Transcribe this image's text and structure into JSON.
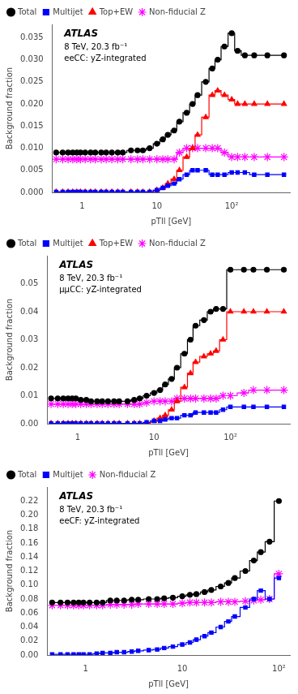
{
  "chart_data": [
    {
      "type": "line",
      "log": "x",
      "grid": false,
      "legend": "upper left",
      "x_label": "pTll [GeV]",
      "y_label": "Background fraction",
      "annotations": [
        "ATLAS",
        "8 TeV, 20.3 fb⁻¹",
        "eeCC: yZ-integrated"
      ],
      "xlim": [
        0.4,
        600
      ],
      "xticks": [
        1,
        10,
        {
          "value": 100,
          "label": "10²"
        }
      ],
      "ylim": [
        0,
        0.038
      ],
      "yticks": [
        {
          "value": 0,
          "label": "0.000"
        },
        0.005,
        {
          "value": 0.01,
          "label": "0.010"
        },
        0.015,
        {
          "value": 0.02,
          "label": "0.020"
        },
        0.025,
        {
          "value": 0.03,
          "label": "0.030"
        },
        0.035
      ],
      "x": [
        0.45,
        0.55,
        0.65,
        0.75,
        0.85,
        0.95,
        1.1,
        1.3,
        1.5,
        1.8,
        2.1,
        2.5,
        3.0,
        3.5,
        4.5,
        5.5,
        6.5,
        8.0,
        10,
        12,
        14,
        17,
        20,
        25,
        30,
        35,
        45,
        55,
        65,
        80,
        100,
        120,
        150,
        200,
        300,
        500
      ],
      "series": [
        {
          "name": "Total",
          "color": "black",
          "marker": "circle",
          "values": [
            0.009,
            0.009,
            0.009,
            0.009,
            0.009,
            0.009,
            0.009,
            0.009,
            0.009,
            0.009,
            0.009,
            0.009,
            0.009,
            0.009,
            0.0095,
            0.0095,
            0.0095,
            0.01,
            0.011,
            0.012,
            0.013,
            0.014,
            0.016,
            0.018,
            0.02,
            0.022,
            0.025,
            0.028,
            0.03,
            0.033,
            0.036,
            0.032,
            0.031,
            0.031,
            0.031,
            0.031
          ]
        },
        {
          "name": "Multijet",
          "color": "blue",
          "marker": "square",
          "values": [
            0.0001,
            0.0001,
            0.0001,
            0.0001,
            0.0001,
            0.0001,
            0.0001,
            0.0001,
            0.0001,
            0.0001,
            0.0001,
            0.0001,
            0.0001,
            0.0001,
            0.0001,
            0.0001,
            0.0001,
            0.0001,
            0.0005,
            0.001,
            0.0015,
            0.002,
            0.003,
            0.004,
            0.005,
            0.005,
            0.005,
            0.004,
            0.004,
            0.004,
            0.0045,
            0.0045,
            0.0045,
            0.004,
            0.004,
            0.004
          ]
        },
        {
          "name": "Top+EW",
          "color": "red",
          "marker": "triangle",
          "values": [
            0.0001,
            0.0001,
            0.0001,
            0.0001,
            0.0001,
            0.0001,
            0.0001,
            0.0001,
            0.0001,
            0.0001,
            0.0001,
            0.0001,
            0.0001,
            0.0001,
            0.0001,
            0.0001,
            0.0001,
            0.0001,
            0.0005,
            0.001,
            0.002,
            0.003,
            0.005,
            0.008,
            0.01,
            0.013,
            0.017,
            0.022,
            0.023,
            0.022,
            0.021,
            0.02,
            0.02,
            0.02,
            0.02,
            0.02
          ]
        },
        {
          "name": "Non-fiducial Z",
          "color": "magenta",
          "marker": "star",
          "values": [
            0.0075,
            0.0075,
            0.0075,
            0.0075,
            0.0075,
            0.0075,
            0.0075,
            0.0075,
            0.0075,
            0.0075,
            0.0075,
            0.0075,
            0.0075,
            0.0075,
            0.0075,
            0.0075,
            0.0075,
            0.0075,
            0.0075,
            0.0075,
            0.0075,
            0.0075,
            0.009,
            0.01,
            0.01,
            0.01,
            0.01,
            0.01,
            0.01,
            0.009,
            0.008,
            0.008,
            0.008,
            0.008,
            0.008,
            0.008
          ]
        }
      ]
    },
    {
      "type": "line",
      "log": "x",
      "grid": false,
      "legend": "upper left",
      "x_label": "pTll [GeV]",
      "y_label": "Background fraction",
      "annotations": [
        "ATLAS",
        "8 TeV, 20.3 fb⁻¹",
        "μμCC: yZ-integrated"
      ],
      "xlim": [
        0.4,
        600
      ],
      "xticks": [
        1,
        10,
        {
          "value": 100,
          "label": "10²"
        }
      ],
      "ylim": [
        0,
        0.06
      ],
      "yticks": [
        {
          "value": 0,
          "label": "0.00"
        },
        0.01,
        0.02,
        0.03,
        0.04,
        0.05
      ],
      "x": [
        0.45,
        0.55,
        0.65,
        0.75,
        0.85,
        0.95,
        1.1,
        1.3,
        1.5,
        1.8,
        2.1,
        2.5,
        3.0,
        3.5,
        4.5,
        5.5,
        6.5,
        8.0,
        10,
        12,
        14,
        17,
        20,
        25,
        30,
        35,
        45,
        55,
        65,
        80,
        100,
        150,
        200,
        300,
        500
      ],
      "series": [
        {
          "name": "Total",
          "color": "black",
          "marker": "circle",
          "values": [
            0.009,
            0.009,
            0.009,
            0.009,
            0.009,
            0.009,
            0.0085,
            0.0085,
            0.008,
            0.008,
            0.008,
            0.008,
            0.008,
            0.008,
            0.008,
            0.0085,
            0.009,
            0.01,
            0.011,
            0.012,
            0.014,
            0.016,
            0.02,
            0.025,
            0.03,
            0.035,
            0.037,
            0.04,
            0.041,
            0.041,
            0.055,
            0.055,
            0.055,
            0.055,
            0.055
          ]
        },
        {
          "name": "Multijet",
          "color": "blue",
          "marker": "square",
          "values": [
            0.0001,
            0.0001,
            0.0001,
            0.0001,
            0.0001,
            0.0001,
            0.0001,
            0.0001,
            0.0001,
            0.0001,
            0.0001,
            0.0001,
            0.0001,
            0.0001,
            0.0001,
            0.0001,
            0.0001,
            0.0005,
            0.001,
            0.001,
            0.0015,
            0.002,
            0.002,
            0.003,
            0.003,
            0.004,
            0.004,
            0.004,
            0.004,
            0.005,
            0.006,
            0.006,
            0.006,
            0.006,
            0.006
          ]
        },
        {
          "name": "Top+EW",
          "color": "red",
          "marker": "triangle",
          "values": [
            0.0001,
            0.0001,
            0.0001,
            0.0001,
            0.0001,
            0.0001,
            0.0001,
            0.0001,
            0.0001,
            0.0001,
            0.0001,
            0.0001,
            0.0001,
            0.0001,
            0.0001,
            0.0001,
            0.0001,
            0.0001,
            0.001,
            0.002,
            0.003,
            0.005,
            0.008,
            0.013,
            0.018,
            0.022,
            0.024,
            0.025,
            0.026,
            0.03,
            0.04,
            0.04,
            0.04,
            0.04,
            0.04
          ]
        },
        {
          "name": "Non-fiducial Z",
          "color": "magenta",
          "marker": "star",
          "values": [
            0.007,
            0.007,
            0.007,
            0.007,
            0.007,
            0.007,
            0.007,
            0.007,
            0.007,
            0.007,
            0.007,
            0.007,
            0.007,
            0.007,
            0.007,
            0.007,
            0.007,
            0.0075,
            0.008,
            0.008,
            0.008,
            0.008,
            0.009,
            0.009,
            0.009,
            0.009,
            0.009,
            0.009,
            0.009,
            0.01,
            0.01,
            0.011,
            0.012,
            0.012,
            0.012
          ]
        }
      ]
    },
    {
      "type": "line",
      "log": "x",
      "grid": false,
      "legend": "upper left",
      "x_label": "pTll [GeV]",
      "y_label": "Background fraction",
      "annotations": [
        "ATLAS",
        "8 TeV, 20.3 fb⁻¹",
        "eeCF: yZ-integrated"
      ],
      "xlim": [
        0.4,
        130
      ],
      "xticks": [
        1,
        10,
        {
          "value": 100,
          "label": "10²"
        }
      ],
      "ylim": [
        0,
        0.24
      ],
      "yticks": [
        {
          "value": 0,
          "label": "0.00"
        },
        0.02,
        0.04,
        0.06,
        0.08,
        {
          "value": 0.1,
          "label": "0.10"
        },
        0.12,
        0.14,
        0.16,
        0.18,
        {
          "value": 0.2,
          "label": "0.20"
        },
        0.22
      ],
      "x": [
        0.45,
        0.55,
        0.65,
        0.75,
        0.85,
        0.95,
        1.1,
        1.3,
        1.5,
        1.8,
        2.1,
        2.5,
        3.0,
        3.5,
        4.5,
        5.5,
        6.5,
        8.0,
        10,
        12,
        14,
        17,
        20,
        25,
        30,
        35,
        45,
        55,
        65,
        80,
        100
      ],
      "series": [
        {
          "name": "Total",
          "color": "black",
          "marker": "circle",
          "values": [
            0.075,
            0.075,
            0.075,
            0.075,
            0.075,
            0.075,
            0.075,
            0.075,
            0.075,
            0.078,
            0.078,
            0.078,
            0.079,
            0.079,
            0.08,
            0.08,
            0.081,
            0.082,
            0.084,
            0.086,
            0.087,
            0.09,
            0.093,
            0.098,
            0.103,
            0.11,
            0.12,
            0.135,
            0.147,
            0.162,
            0.22
          ]
        },
        {
          "name": "Multijet",
          "color": "blue",
          "marker": "square",
          "values": [
            0.001,
            0.001,
            0.001,
            0.001,
            0.001,
            0.001,
            0.001,
            0.002,
            0.003,
            0.003,
            0.004,
            0.004,
            0.005,
            0.006,
            0.007,
            0.008,
            0.01,
            0.012,
            0.015,
            0.018,
            0.022,
            0.027,
            0.032,
            0.04,
            0.048,
            0.055,
            0.068,
            0.08,
            0.092,
            0.08,
            0.11
          ]
        },
        {
          "name": "Non-fiducial Z",
          "color": "magenta",
          "marker": "star",
          "values": [
            0.071,
            0.071,
            0.071,
            0.071,
            0.071,
            0.071,
            0.071,
            0.071,
            0.071,
            0.072,
            0.072,
            0.072,
            0.072,
            0.073,
            0.073,
            0.073,
            0.073,
            0.073,
            0.074,
            0.075,
            0.075,
            0.075,
            0.075,
            0.076,
            0.076,
            0.076,
            0.077,
            0.078,
            0.079,
            0.08,
            0.116
          ]
        }
      ]
    }
  ]
}
